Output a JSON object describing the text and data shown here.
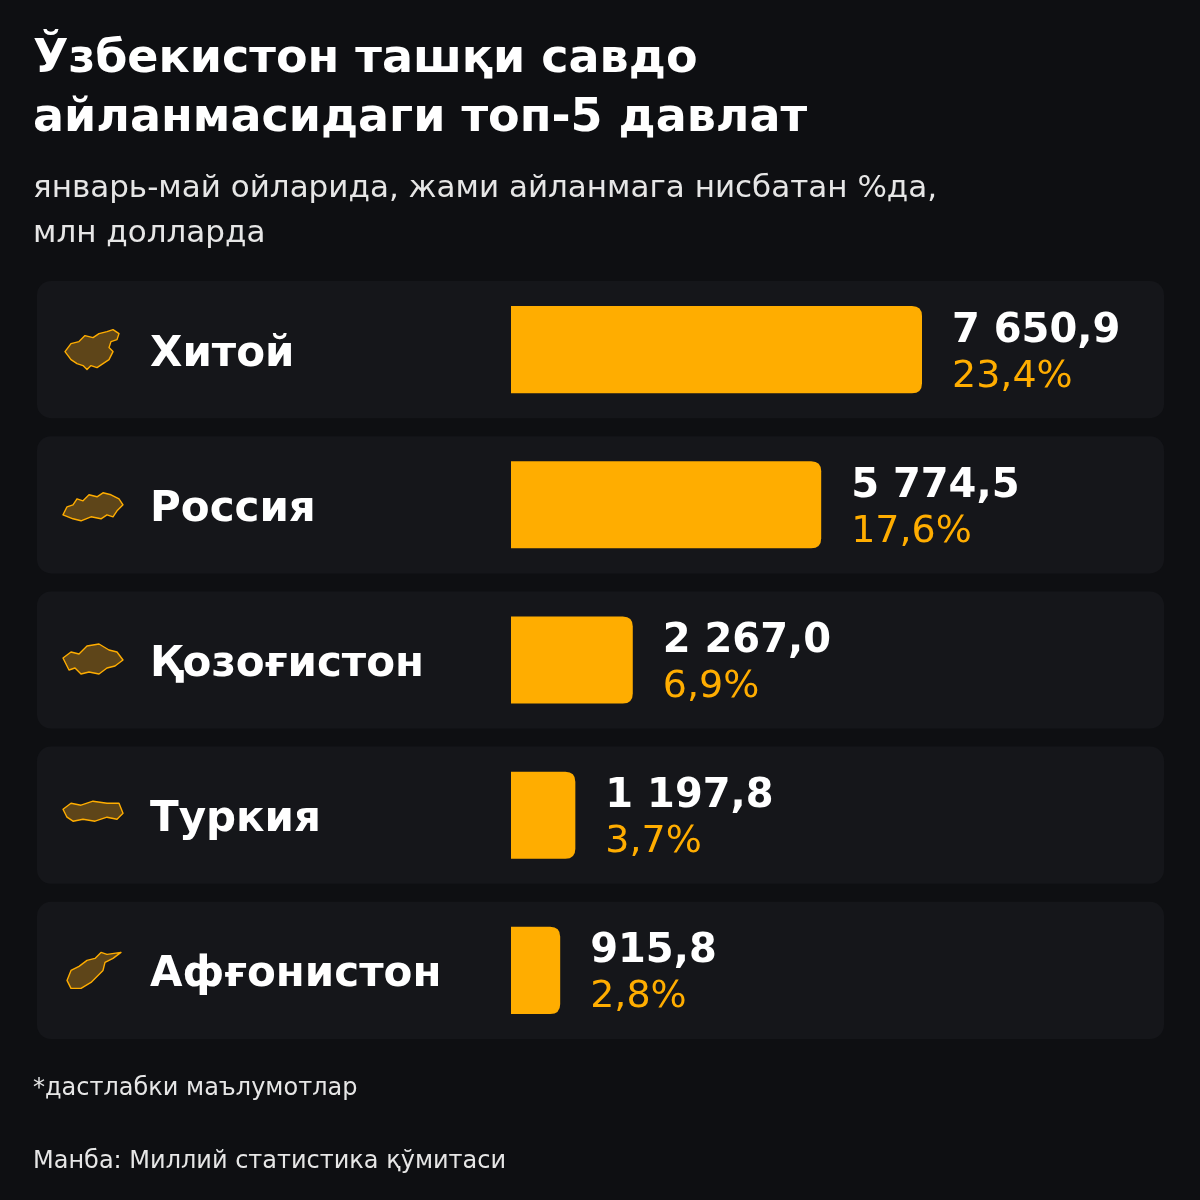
{
  "chart_data": {
    "type": "bar",
    "orientation": "horizontal",
    "title": "Ўзбекистон ташқи савдо айланмасидаги топ-5 давлат",
    "subtitle": "январь-май ойларида, жами айланмага нисбатан %да, млн долларда",
    "categories": [
      "Хитой",
      "Россия",
      "Қозоғистон",
      "Туркия",
      "Афғонистон"
    ],
    "values": [
      7650.9,
      5774.5,
      2267.0,
      1197.8,
      915.8
    ],
    "color": "#ffad00",
    "value_labels": [
      "7 650,9",
      "5 774,5",
      "2 267,0",
      "1 197,8",
      "915,8"
    ],
    "annotations": [
      {
        "text": "23,4%",
        "x": 7650.9,
        "y": "Хитой"
      },
      {
        "text": "17,6%",
        "x": 5774.5,
        "y": "Россия"
      },
      {
        "text": "6,9%",
        "x": 2267.0,
        "y": "Қозоғистон"
      },
      {
        "text": "3,7%",
        "x": 1197.8,
        "y": "Туркия"
      },
      {
        "text": "2,8%",
        "x": 915.8,
        "y": "Афғонистон"
      },
      "*дастлабки маълумотлар",
      "Манба: Миллий статистика қўмитаси"
    ]
  }
}
